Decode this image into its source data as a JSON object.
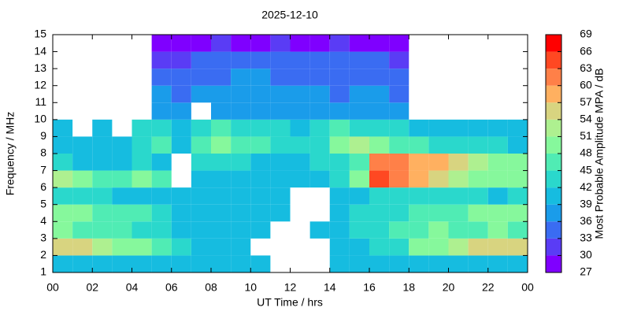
{
  "chart_data": {
    "type": "heatmap",
    "title": "2025-12-10",
    "xlabel": "UT Time / hrs",
    "ylabel": "Frequency / MHz",
    "colorbar_label": "Most Probable Amplitude MPA / dB",
    "xbins": [
      0,
      1,
      2,
      3,
      4,
      5,
      6,
      7,
      8,
      9,
      10,
      11,
      12,
      13,
      14,
      15,
      16,
      17,
      18,
      19,
      20,
      21,
      22,
      23,
      24
    ],
    "ybins": [
      1,
      2,
      3,
      4,
      5,
      6,
      7,
      8,
      9,
      10,
      11,
      12,
      13,
      14,
      15
    ],
    "values": [
      [
        40,
        41,
        40,
        39,
        40,
        41,
        40,
        39,
        40,
        39,
        40,
        null,
        null,
        null,
        39,
        40,
        40,
        41,
        41,
        40,
        40,
        41,
        40,
        40
      ],
      [
        54,
        55,
        53,
        50,
        48,
        45,
        42,
        41,
        40,
        39,
        null,
        null,
        null,
        null,
        40,
        41,
        43,
        44,
        48,
        50,
        52,
        54,
        55,
        54
      ],
      [
        48,
        47,
        46,
        45,
        44,
        42,
        41,
        40,
        39,
        39,
        40,
        null,
        null,
        40,
        41,
        42,
        44,
        46,
        47,
        48,
        47,
        46,
        48,
        47
      ],
      [
        50,
        49,
        47,
        46,
        45,
        43,
        40,
        39,
        40,
        40,
        40,
        41,
        null,
        null,
        41,
        42,
        43,
        44,
        46,
        47,
        47,
        49,
        50,
        48
      ],
      [
        42,
        43,
        42,
        41,
        41,
        40,
        39,
        40,
        41,
        40,
        39,
        40,
        null,
        null,
        40,
        41,
        42,
        43,
        43,
        44,
        44,
        42,
        41,
        42
      ],
      [
        52,
        50,
        47,
        45,
        49,
        46,
        null,
        40,
        40,
        41,
        40,
        40,
        39,
        40,
        44,
        50,
        63,
        62,
        58,
        55,
        52,
        50,
        49,
        48
      ],
      [
        42,
        41,
        40,
        41,
        42,
        41,
        null,
        44,
        43,
        42,
        41,
        41,
        40,
        42,
        44,
        46,
        62,
        60,
        58,
        57,
        55,
        52,
        50,
        49
      ],
      [
        40,
        40,
        40,
        41,
        44,
        45,
        40,
        46,
        48,
        46,
        45,
        43,
        42,
        44,
        50,
        52,
        48,
        46,
        45,
        44,
        43,
        42,
        42,
        41
      ],
      [
        41,
        null,
        41,
        null,
        43,
        42,
        39,
        44,
        45,
        44,
        43,
        42,
        41,
        43,
        45,
        44,
        43,
        42,
        41,
        41,
        40,
        41,
        40,
        41
      ],
      [
        null,
        null,
        null,
        null,
        null,
        37,
        36,
        null,
        37,
        38,
        38,
        37,
        37,
        37,
        36,
        36,
        37,
        36,
        null,
        null,
        null,
        null,
        null,
        null
      ],
      [
        null,
        null,
        null,
        null,
        null,
        36,
        35,
        36,
        36,
        37,
        37,
        36,
        36,
        36,
        35,
        36,
        36,
        35,
        null,
        null,
        null,
        null,
        null,
        null
      ],
      [
        null,
        null,
        null,
        null,
        null,
        35,
        34,
        35,
        35,
        36,
        36,
        35,
        35,
        34,
        35,
        35,
        35,
        34,
        null,
        null,
        null,
        null,
        null,
        null
      ],
      [
        null,
        null,
        null,
        null,
        null,
        32,
        31,
        33,
        34,
        35,
        34,
        34,
        33,
        33,
        33,
        34,
        33,
        32,
        null,
        null,
        null,
        null,
        null,
        null
      ],
      [
        null,
        null,
        null,
        null,
        null,
        29,
        28,
        29,
        30,
        29,
        29,
        30,
        29,
        29,
        30,
        29,
        28,
        28,
        null,
        null,
        null,
        null,
        null,
        null
      ]
    ],
    "xlim": [
      0,
      24
    ],
    "ylim": [
      1,
      15
    ],
    "xticks": [
      {
        "value": 0,
        "label": "00"
      },
      {
        "value": 2,
        "label": "02"
      },
      {
        "value": 4,
        "label": "04"
      },
      {
        "value": 6,
        "label": "06"
      },
      {
        "value": 8,
        "label": "08"
      },
      10,
      12,
      14,
      16,
      18,
      20,
      22,
      {
        "value": 24,
        "label": "00"
      }
    ],
    "yticks": [
      1,
      2,
      3,
      4,
      5,
      6,
      7,
      8,
      9,
      10,
      11,
      12,
      13,
      14,
      15
    ],
    "clim": [
      27,
      69
    ],
    "cticks": [
      27,
      30,
      33,
      36,
      39,
      42,
      45,
      48,
      51,
      54,
      57,
      60,
      63,
      66,
      69
    ],
    "colors": [
      "#7f00ff",
      "#5a3cf5",
      "#3a6cf2",
      "#1a9cea",
      "#16bce0",
      "#2ad8cc",
      "#50ecb4",
      "#86f89c",
      "#aef090",
      "#d8d480",
      "#ffb060",
      "#ff8048",
      "#ff4822",
      "#ff0000"
    ],
    "grid": false
  }
}
